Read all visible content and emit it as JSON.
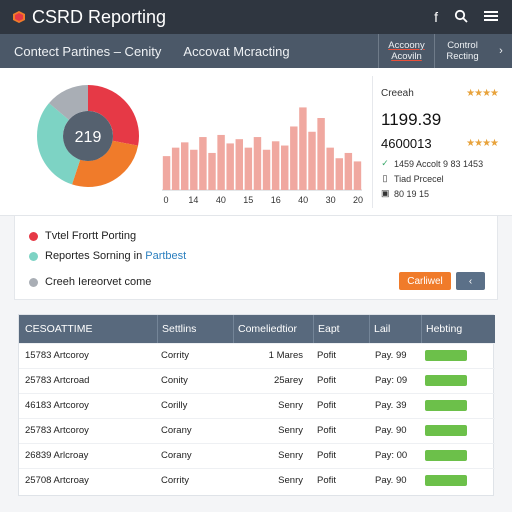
{
  "header": {
    "title": "CSRD Reporting",
    "icons": [
      "facebook-icon",
      "search-icon",
      "menu-icon"
    ],
    "icon_glyphs": [
      "f",
      "⚲",
      "≡"
    ]
  },
  "subbar": {
    "tab1": "Contect Partines – Cenity",
    "tab2": "Accovat Mcracting",
    "mini1": "Accoony Acoviln",
    "mini2": "Control Recting",
    "chevron": "›"
  },
  "donut": {
    "center_value": "219",
    "segments": [
      {
        "value": 28,
        "color": "#e63946"
      },
      {
        "value": 27,
        "color": "#f07b2a"
      },
      {
        "value": 31,
        "color": "#7dd3c4"
      },
      {
        "value": 14,
        "color": "#a9aeb5"
      }
    ],
    "inner_color": "#55616f"
  },
  "chart_data": {
    "type": "bar",
    "x_tick_labels": [
      "0",
      "14",
      "40",
      "15",
      "16",
      "40",
      "30",
      "20"
    ],
    "values": [
      32,
      40,
      45,
      38,
      50,
      35,
      52,
      44,
      48,
      40,
      50,
      38,
      46,
      42,
      60,
      78,
      55,
      68,
      40,
      30,
      35,
      27
    ],
    "ylim": [
      0,
      85
    ],
    "color": "#f0a8a0",
    "grid": false
  },
  "side_panel": {
    "label": "Creeah",
    "big_value": "1199.39",
    "second_value": "4600013",
    "stars": "★★★★",
    "meta": [
      {
        "icon": "✓",
        "text": "1459 Accolt 9 83 1453"
      },
      {
        "icon": "▯",
        "text": "Tiad Prcecel"
      },
      {
        "icon": "▣",
        "text": "80 19 15"
      }
    ]
  },
  "info": {
    "rows": [
      {
        "text": "Tvtel Frortt Porting",
        "accent": "",
        "color": "#e63946"
      },
      {
        "text": "Reportes Sorning in",
        "accent": "Partbest",
        "color": "#7dd3c4"
      },
      {
        "text": "Creeh Iereorvet come",
        "accent": "",
        "color": "#a9aeb5"
      }
    ],
    "primary_button": "Carliwel",
    "secondary_button": "‹"
  },
  "table": {
    "headers": [
      "CESOATTIME",
      "Settlins",
      "Comeliedtior",
      "Eapt",
      "Lail",
      "Hebting"
    ],
    "rows": [
      [
        "15783 Artcoroy",
        "Corrity",
        "1 Mares",
        "Pofit",
        "Pay. 99"
      ],
      [
        "25783 Artcroad",
        "Conity",
        "25arey",
        "Pofit",
        "Pay: 09"
      ],
      [
        "46183 Artcoroy",
        "Corilly",
        "Senry",
        "Pofit",
        "Pay. 39"
      ],
      [
        "25783 Artcoroy",
        "Corany",
        "Senry",
        "Pofit",
        "Pay. 90"
      ],
      [
        "26839 Arlcroay",
        "Corany",
        "Senry",
        "Pofit",
        "Pay: 00"
      ],
      [
        "25708 Artcroay",
        "Corrity",
        "Senry",
        "Pofit",
        "Pay. 90"
      ]
    ],
    "pill_color": "#6cc04a"
  }
}
